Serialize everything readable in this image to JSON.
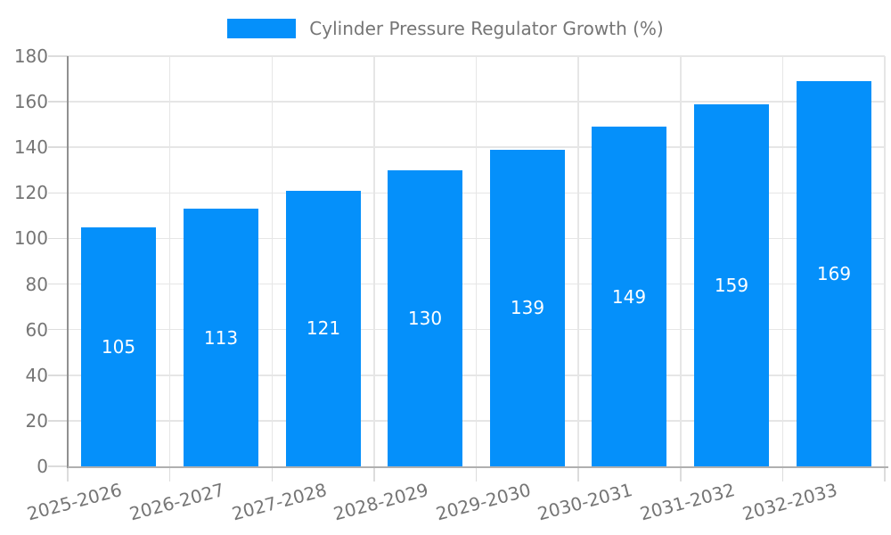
{
  "chart_data": {
    "type": "bar",
    "title": "Cylinder Pressure Regulator Growth (%)",
    "categories": [
      "2025-2026",
      "2026-2027",
      "2027-2028",
      "2028-2029",
      "2029-2030",
      "2030-2031",
      "2031-2032",
      "2032-2033"
    ],
    "values": [
      105,
      113,
      121,
      130,
      139,
      149,
      159,
      169
    ],
    "xlabel": "",
    "ylabel": "",
    "ylim": [
      0,
      180
    ],
    "yticks": [
      0,
      20,
      40,
      60,
      80,
      100,
      120,
      140,
      160,
      180
    ],
    "grid": true,
    "legend_position": "top-center",
    "value_label_position": "inside-center",
    "x_tick_label_rotation_deg": -15
  },
  "legend": {
    "series_label": "Cylinder Pressure Regulator Growth (%)"
  },
  "colors": {
    "bar": "#0590fa",
    "bar_value_text": "#ffffff",
    "axis_label_text": "#757575",
    "legend_text": "#757575",
    "y_axis_line": "#909090",
    "x_axis_line": "#b0b0b0",
    "grid_line": "#e6e6e6",
    "tick_line": "#dcdcdc",
    "background": "#ffffff"
  }
}
